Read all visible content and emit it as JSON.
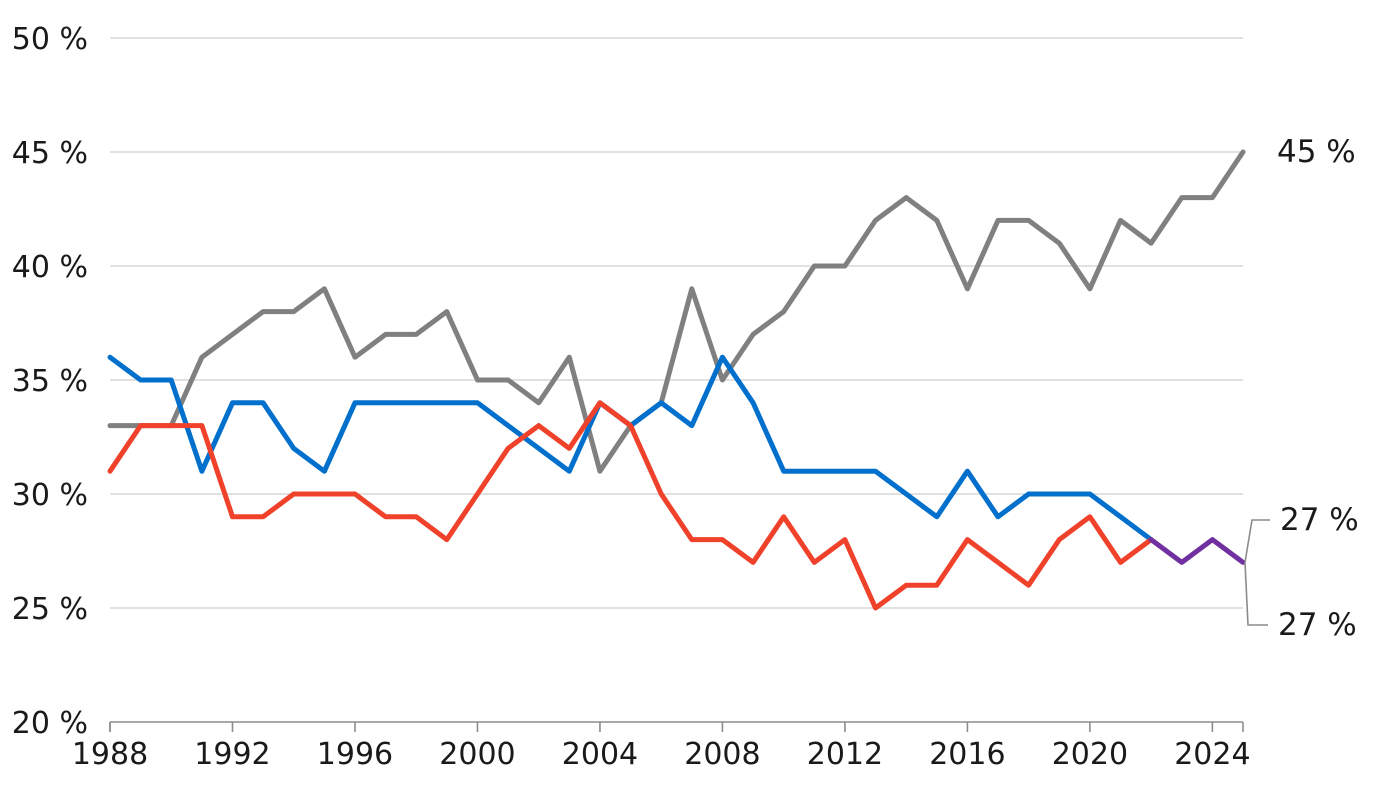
{
  "chart_data": {
    "type": "line",
    "title": "",
    "xlabel": "",
    "ylabel": "",
    "xlim": [
      1988,
      2025
    ],
    "ylim": [
      20,
      50
    ],
    "x_ticks": [
      "1988",
      "1992",
      "1996",
      "2000",
      "2004",
      "2008",
      "2012",
      "2016",
      "2020",
      "2024"
    ],
    "y_ticks": [
      "20 %",
      "25 %",
      "30 %",
      "35 %",
      "40 %",
      "45 %",
      "50 %"
    ],
    "grid": true,
    "legend": "none",
    "x": [
      1988,
      1989,
      1990,
      1991,
      1992,
      1993,
      1994,
      1995,
      1996,
      1997,
      1998,
      1999,
      2000,
      2001,
      2002,
      2003,
      2004,
      2005,
      2006,
      2007,
      2008,
      2009,
      2010,
      2011,
      2012,
      2013,
      2014,
      2015,
      2016,
      2017,
      2018,
      2019,
      2020,
      2021,
      2022,
      2023,
      2024,
      2025
    ],
    "series": [
      {
        "color": "#808080",
        "values": [
          33,
          33,
          33,
          36,
          37,
          38,
          38,
          39,
          36,
          37,
          37,
          38,
          35,
          35,
          34,
          36,
          31,
          33,
          34,
          39,
          35,
          37,
          38,
          40,
          40,
          42,
          43,
          42,
          39,
          42,
          42,
          41,
          39,
          42,
          41,
          43,
          43,
          45
        ]
      },
      {
        "color": "#0070cc",
        "values": [
          36,
          35,
          35,
          31,
          34,
          34,
          32,
          31,
          34,
          34,
          34,
          34,
          34,
          33,
          32,
          31,
          34,
          33,
          34,
          33,
          36,
          34,
          31,
          31,
          31,
          31,
          30,
          29,
          31,
          29,
          30,
          30,
          30,
          29,
          28,
          null,
          null,
          null
        ]
      },
      {
        "color": "#f0412a",
        "values": [
          31,
          33,
          33,
          33,
          29,
          29,
          30,
          30,
          30,
          29,
          29,
          28,
          30,
          32,
          33,
          32,
          34,
          33,
          30,
          28,
          28,
          27,
          29,
          27,
          28,
          25,
          26,
          26,
          28,
          27,
          26,
          28,
          29,
          27,
          28,
          null,
          null,
          null
        ]
      },
      {
        "color": "#7030a0",
        "values": [
          null,
          null,
          null,
          null,
          null,
          null,
          null,
          null,
          null,
          null,
          null,
          null,
          null,
          null,
          null,
          null,
          null,
          null,
          null,
          null,
          null,
          null,
          null,
          null,
          null,
          null,
          null,
          null,
          null,
          null,
          null,
          null,
          null,
          null,
          28,
          27,
          28,
          27
        ]
      }
    ],
    "end_labels": [
      {
        "text": "45 %",
        "series": 0
      },
      {
        "text": "27 %",
        "series": 3
      },
      {
        "text": "27 %",
        "series": 3
      }
    ]
  }
}
